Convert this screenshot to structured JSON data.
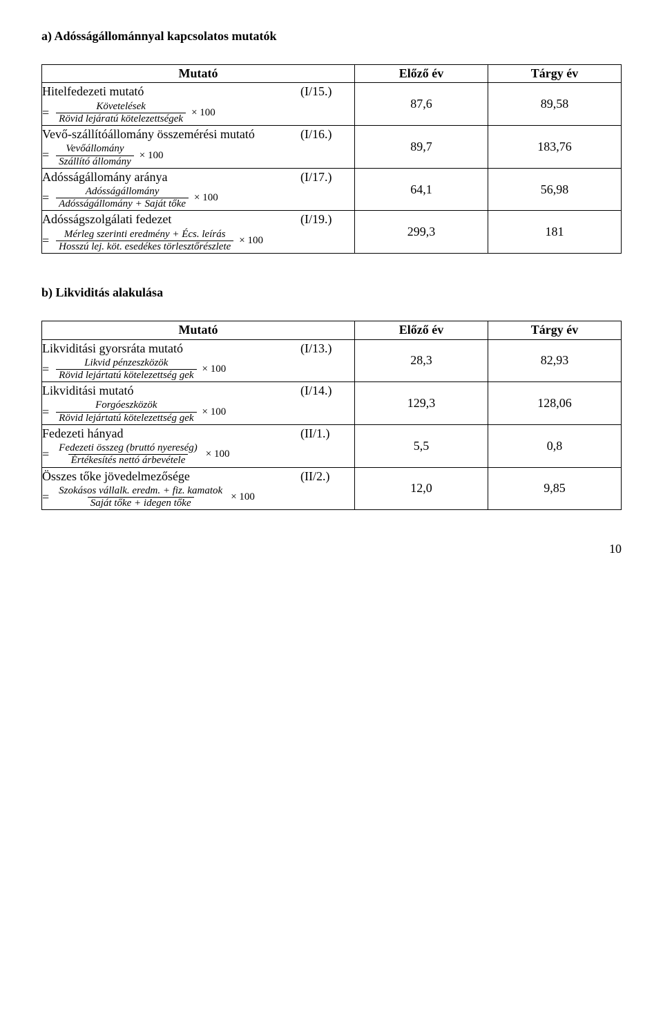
{
  "sectionA": {
    "heading": "a) Adósságállománnyal kapcsolatos mutatók",
    "headers": {
      "indicator": "Mutató",
      "prev": "Előző év",
      "curr": "Tárgy év"
    },
    "rows": [
      {
        "name": "Hitelfedezeti mutató",
        "code": "(I/15.)",
        "num": "Követelések",
        "den": "Rövid lejáratú kötelezettségek",
        "prev": "87,6",
        "curr": "89,58"
      },
      {
        "name": "Vevő-szállítóállomány összemérési mutató",
        "code": "(I/16.)",
        "num": "Vevőállomány",
        "den": "Szállító állomány",
        "prev": "89,7",
        "curr": "183,76"
      },
      {
        "name": "Adósságállomány aránya",
        "code": "(I/17.)",
        "num": "Adósságállomány",
        "den": "Adósságállomány + Saját tőke",
        "prev": "64,1",
        "curr": "56,98"
      },
      {
        "name": "Adósságszolgálati fedezet",
        "code": "(I/19.)",
        "num": "Mérleg szerinti eredmény + Écs. leírás",
        "den": "Hosszú lej. köt. esedékes törlesztőrészlete",
        "prev": "299,3",
        "curr": "181"
      }
    ]
  },
  "sectionB": {
    "heading": "b) Likviditás alakulása",
    "headers": {
      "indicator": "Mutató",
      "prev": "Előző év",
      "curr": "Tárgy év"
    },
    "rows": [
      {
        "name": "Likviditási gyorsráta mutató",
        "code": "(I/13.)",
        "num": "Likvid pénzeszközök",
        "den": "Rövid lejártatú kötelezettség gek",
        "prev": "28,3",
        "curr": "82,93"
      },
      {
        "name": "Likviditási mutató",
        "code": "(I/14.)",
        "num": "Forgóeszközök",
        "den": "Rövid lejártatú kötelezettség gek",
        "prev": "129,3",
        "curr": "128,06"
      },
      {
        "name": "Fedezeti hányad",
        "code": "(II/1.)",
        "num": "Fedezeti összeg (bruttó nyereség)",
        "den": "Értékesítés nettó árbevétele",
        "prev": "5,5",
        "curr": "0,8"
      },
      {
        "name": "Összes tőke jövedelmezősége",
        "code": "(II/2.)",
        "num": "Szokásos vállalk. eredm. + fiz. kamatok",
        "den": "Saját tőke + idegen tőke",
        "prev": "12,0",
        "curr": "9,85"
      }
    ]
  },
  "multiply": "× 100",
  "eq": "=",
  "pageNumber": "10"
}
